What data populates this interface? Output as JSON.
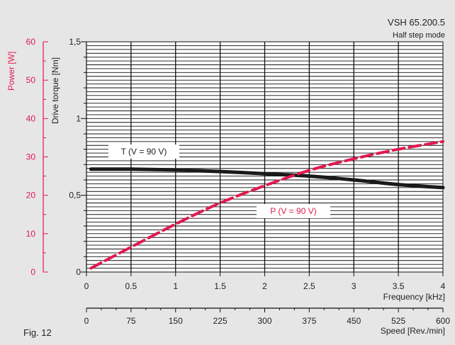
{
  "chart_data": {
    "type": "line",
    "title": "VSH 65.200.5",
    "subtitle": "Half step mode",
    "figure_label": "Fig. 12",
    "xlabel": "Frequency [kHz]",
    "x_ticks": [
      "0",
      "0.5",
      "1",
      "1.5",
      "2",
      "2.5",
      "3",
      "3.5",
      "4"
    ],
    "xlim": [
      0,
      4
    ],
    "x2label": "Speed [Rev./min]",
    "x2_ticks": [
      "0",
      "75",
      "150",
      "225",
      "300",
      "375",
      "450",
      "525",
      "600"
    ],
    "x2lim": [
      0,
      600
    ],
    "ylabel": "Drive torque [Nm]",
    "y_ticks": [
      "0",
      "0,5",
      "1",
      "1,5"
    ],
    "ylim": [
      0,
      1.5
    ],
    "y2label": "Power [W]",
    "y2_ticks": [
      "0",
      "10",
      "20",
      "30",
      "40",
      "50",
      "60"
    ],
    "y2lim": [
      0,
      60
    ],
    "grid": true,
    "series": [
      {
        "name": "T (V = 90 V)",
        "axis": "torque",
        "color": "#1a1a1a",
        "x": [
          0.05,
          0.5,
          1.0,
          1.5,
          2.0,
          2.5,
          3.0,
          3.5,
          4.0
        ],
        "values": [
          0.67,
          0.67,
          0.665,
          0.655,
          0.64,
          0.625,
          0.6,
          0.57,
          0.55
        ]
      },
      {
        "name": "P (V = 90 V)",
        "axis": "power",
        "color": "#e0194f",
        "x": [
          0.05,
          0.5,
          1.0,
          1.5,
          2.0,
          2.5,
          3.0,
          3.5,
          4.0
        ],
        "values": [
          1,
          6.5,
          12.5,
          18,
          22.5,
          26.5,
          29.5,
          32,
          34
        ]
      }
    ]
  }
}
